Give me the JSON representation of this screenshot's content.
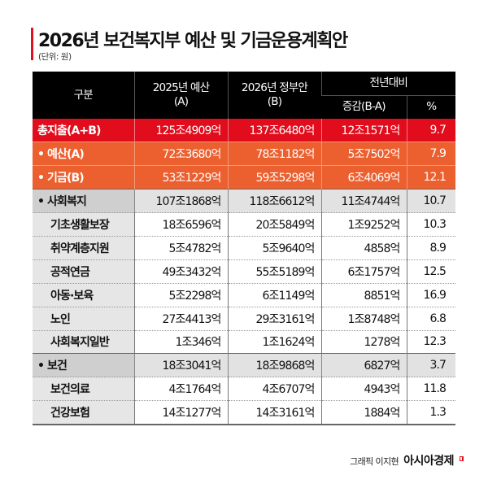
{
  "title": "2026년 보건복지부 예산 및 기금운용계획안",
  "unit": "(단위: 원)",
  "header": {
    "col1": "구분",
    "col2_line1": "2025년 예산",
    "col2_line2": "(A)",
    "col3_line1": "2026년 정부안",
    "col3_line2": "(B)",
    "col4_group": "전년대비",
    "col4_sub1": "증감(B-A)",
    "col4_sub2": "%"
  },
  "rows": [
    {
      "label": "총지출(A+B)",
      "y2025": "125조4909억",
      "y2026": "137조6480억",
      "diff": "12조1571억",
      "pct": "9.7"
    },
    {
      "label": "• 예산(A)",
      "y2025": "72조3680억",
      "y2026": "78조1182억",
      "diff": "5조7502억",
      "pct": "7.9"
    },
    {
      "label": "• 기금(B)",
      "y2025": "53조1229억",
      "y2026": "59조5298억",
      "diff": "6조4069억",
      "pct": "12.1"
    },
    {
      "label": "• 사회복지",
      "y2025": "107조1868억",
      "y2026": "118조6612억",
      "diff": "11조4744억",
      "pct": "10.7"
    },
    {
      "label": "기초생활보장",
      "y2025": "18조6596억",
      "y2026": "20조5849억",
      "diff": "1조9252억",
      "pct": "10.3"
    },
    {
      "label": "취약계층지원",
      "y2025": "5조4782억",
      "y2026": "5조9640억",
      "diff": "4858억",
      "pct": "8.9"
    },
    {
      "label": "공적연금",
      "y2025": "49조3432억",
      "y2026": "55조5189억",
      "diff": "6조1757억",
      "pct": "12.5"
    },
    {
      "label": "아동·보육",
      "y2025": "5조2298억",
      "y2026": "6조1149억",
      "diff": "8851억",
      "pct": "16.9"
    },
    {
      "label": "노인",
      "y2025": "27조4413억",
      "y2026": "29조3161억",
      "diff": "1조8748억",
      "pct": "6.8"
    },
    {
      "label": "사회복지일반",
      "y2025": "1조346억",
      "y2026": "1조1624억",
      "diff": "1278억",
      "pct": "12.3"
    },
    {
      "label": "• 보건",
      "y2025": "18조3041억",
      "y2026": "18조9868억",
      "diff": "6827억",
      "pct": "3.7"
    },
    {
      "label": "보건의료",
      "y2025": "4조1764억",
      "y2026": "4조6707억",
      "diff": "4943억",
      "pct": "11.8"
    },
    {
      "label": "건강보험",
      "y2025": "14조1277억",
      "y2026": "14조3161억",
      "diff": "1884억",
      "pct": "1.3"
    }
  ],
  "credit": {
    "graphic": "그래픽 이지현",
    "brand": "아시아경제"
  },
  "colors": {
    "accent_red": "#e10c1c",
    "orange": "#ec5f2e",
    "header_black": "#000000",
    "group_gray": "#e2e2e2"
  }
}
